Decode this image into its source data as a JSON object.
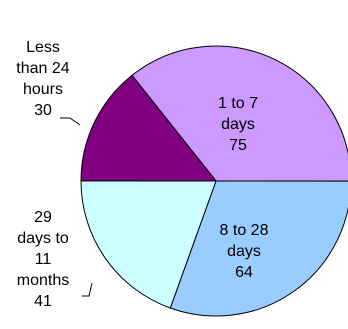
{
  "chart_data": {
    "type": "pie",
    "slices": [
      {
        "label_lines": [
          "1 to 7",
          "days"
        ],
        "value": 75,
        "color": "#CC99FF"
      },
      {
        "label_lines": [
          "8 to 28",
          "days"
        ],
        "value": 64,
        "color": "#99CCFF"
      },
      {
        "label_lines": [
          "29",
          "days to",
          "11",
          "months"
        ],
        "value": 41,
        "color": "#CCFFFF"
      },
      {
        "label_lines": [
          "Less",
          "than 24",
          "hours"
        ],
        "value": 30,
        "color": "#800080"
      }
    ],
    "legend": "none",
    "labels_shown": "category and value"
  }
}
